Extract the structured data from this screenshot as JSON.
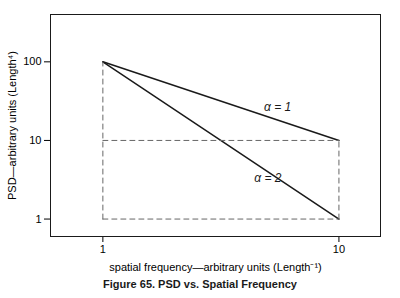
{
  "chart_data": {
    "type": "line",
    "title": "Figure 65.  PSD vs. Spatial Frequency",
    "xlabel": "spatial frequency—arbitrary units (Length⁻¹)",
    "ylabel": "PSD—arbitrary units (Length⁴)",
    "log": true,
    "xlim": [
      0.6,
      15
    ],
    "ylim": [
      0.6,
      400
    ],
    "xticks": [
      1,
      10
    ],
    "yticks": [
      1,
      10,
      100
    ],
    "series": [
      {
        "x": [
          1,
          10
        ],
        "values": [
          100,
          10
        ],
        "color": "#1a1a1a",
        "line_style": "solid"
      },
      {
        "x": [
          1,
          10
        ],
        "values": [
          100,
          1
        ],
        "color": "#1a1a1a",
        "line_style": "solid"
      },
      {
        "x": [
          1,
          1
        ],
        "values": [
          1,
          100
        ],
        "color": "#666666",
        "line_style": "dashed"
      },
      {
        "x": [
          10,
          10
        ],
        "values": [
          1,
          10
        ],
        "color": "#666666",
        "line_style": "dashed"
      },
      {
        "x": [
          1,
          10
        ],
        "values": [
          10,
          10
        ],
        "color": "#666666",
        "line_style": "dashed"
      },
      {
        "x": [
          1,
          10
        ],
        "values": [
          1,
          1
        ],
        "color": "#666666",
        "line_style": "dashed"
      }
    ],
    "annotations": [
      {
        "text": "α = 1",
        "x": 5.5,
        "y": 22,
        "color": "#1a1a1a"
      },
      {
        "text": "α = 2",
        "x": 5.0,
        "y": 2.8,
        "color": "#1a1a1a"
      }
    ]
  }
}
